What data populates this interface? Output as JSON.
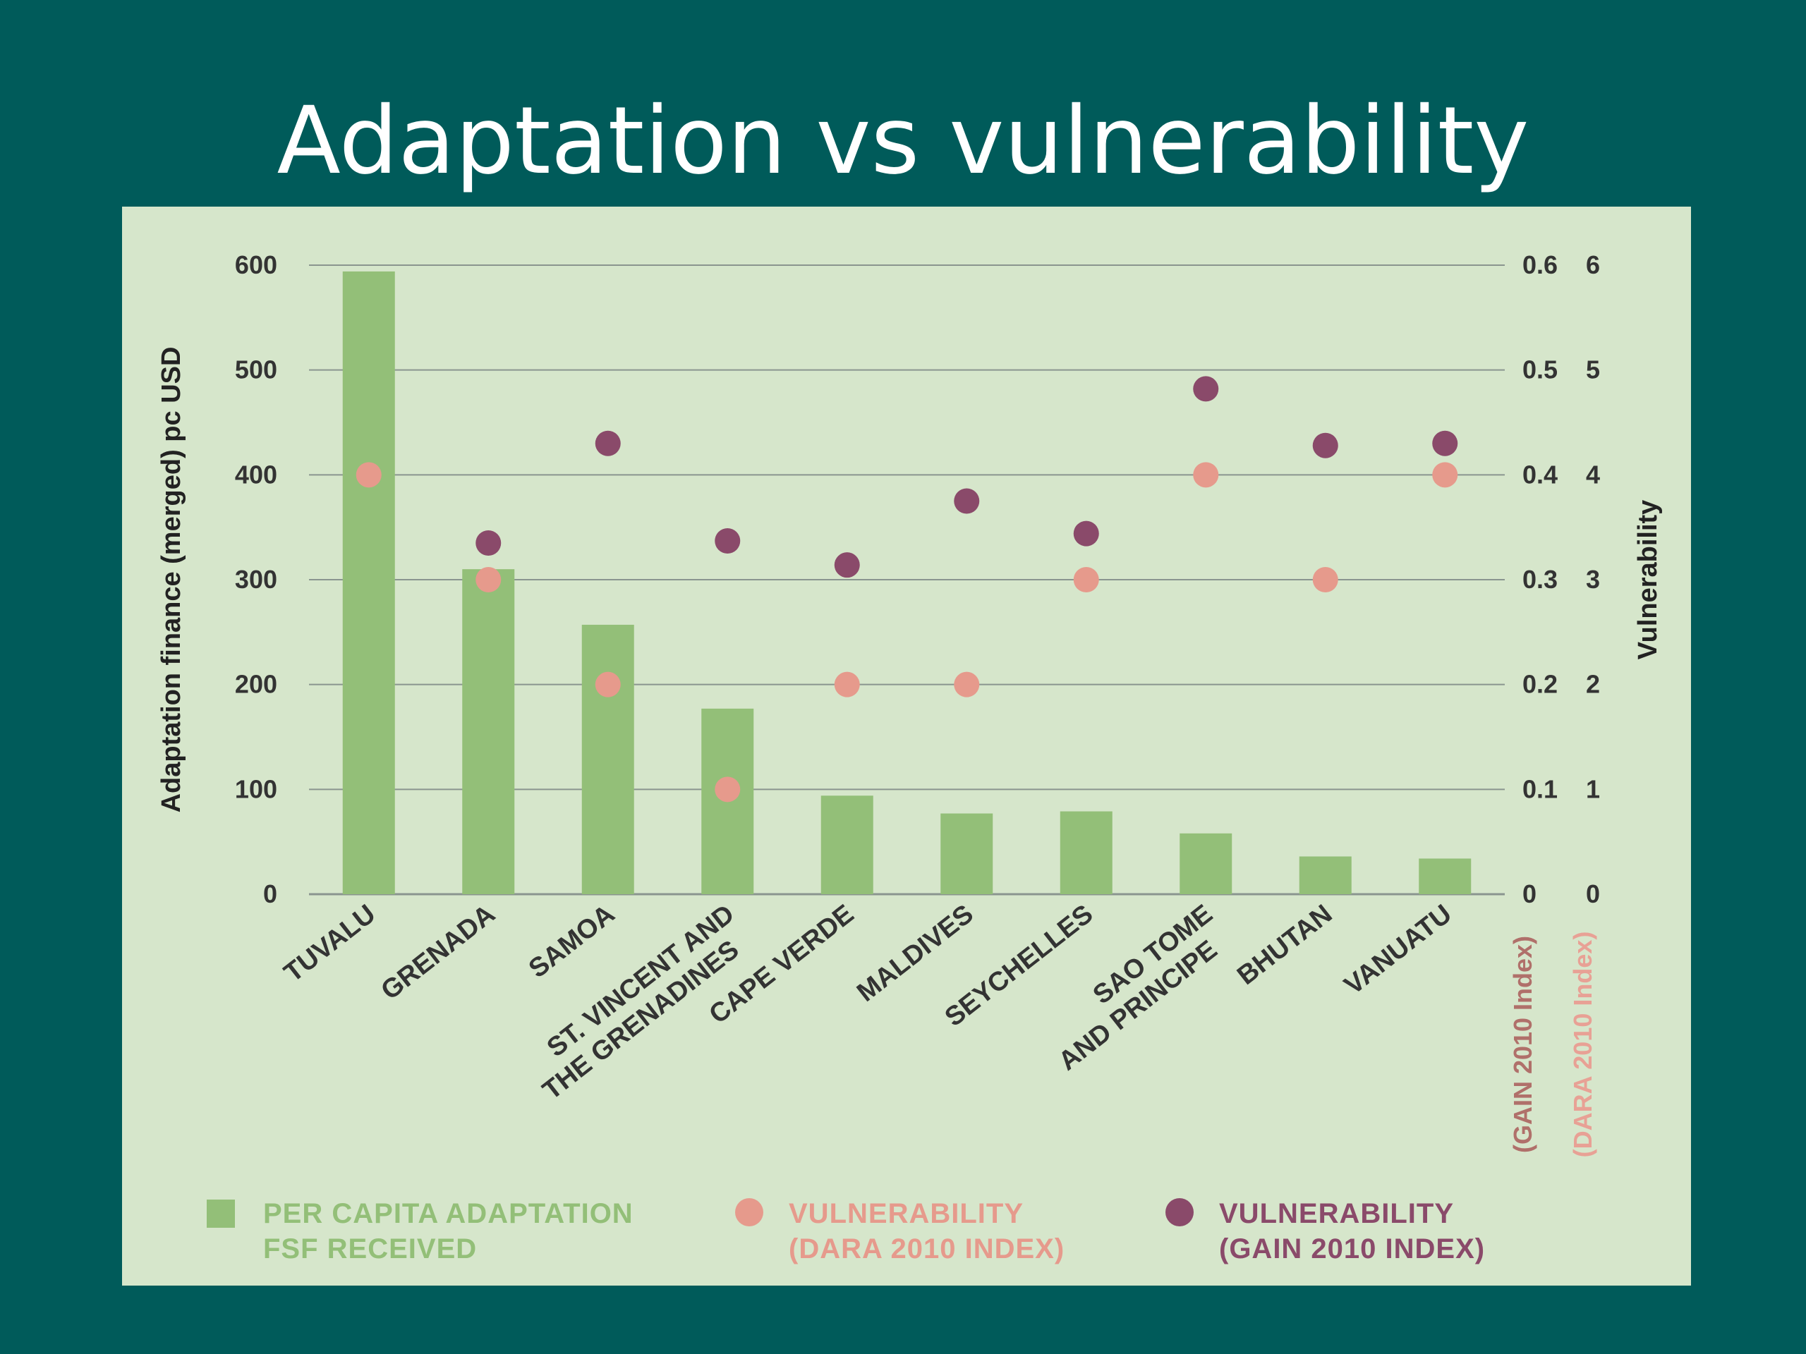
{
  "slide": {
    "title": "Adaptation vs vulnerability"
  },
  "colors": {
    "background": "#005b5a",
    "panel": "#d6e6cb",
    "bar": "#93bf78",
    "dara": "#e69a8c",
    "gain": "#8a4a6a",
    "grid": "#8a958f"
  },
  "chart_data": {
    "type": "bar",
    "categories": [
      [
        "TUVALU"
      ],
      [
        "GRENADA"
      ],
      [
        "SAMOA"
      ],
      [
        "ST. VINCENT AND",
        "THE GRENADINES"
      ],
      [
        "CAPE VERDE"
      ],
      [
        "MALDIVES"
      ],
      [
        "SEYCHELLES"
      ],
      [
        "SAO TOME",
        "AND PRINCIPE"
      ],
      [
        "BHUTAN"
      ],
      [
        "VANUATU"
      ]
    ],
    "series": [
      {
        "name": [
          "PER CAPITA ADAPTATION",
          "FSF RECEIVED"
        ],
        "type": "bar",
        "axis": "left",
        "values": [
          594,
          310,
          257,
          177,
          94,
          77,
          79,
          58,
          36,
          34
        ]
      },
      {
        "name": [
          "VULNERABILITY",
          "(DARA 2010 INDEX)"
        ],
        "type": "scatter",
        "axis": "right-dara",
        "values": [
          0.4,
          0.3,
          0.2,
          0.1,
          0.2,
          0.2,
          0.3,
          0.4,
          0.3,
          0.4
        ]
      },
      {
        "name": [
          "VULNERABILITY",
          "(GAIN 2010 INDEX)"
        ],
        "type": "scatter",
        "axis": "right-gain",
        "values": [
          null,
          3.35,
          4.3,
          3.37,
          3.14,
          3.75,
          3.44,
          4.82,
          4.28,
          4.3
        ]
      }
    ],
    "ylabel_left": "Adaptation finance  (merged) pc USD",
    "ylabel_right": "Vulnerability",
    "gain_axis_label": "(GAIN  2010  Index)",
    "dara_axis_label": "(DARA  2010  Index)",
    "ylim_left": [
      0,
      600
    ],
    "yticks_left": [
      "0",
      "100",
      "200",
      "300",
      "400",
      "500",
      "600"
    ],
    "yticks_right_dara": [
      "0",
      "0.1",
      "0.2",
      "0.3",
      "0.4",
      "0.5",
      "0.6"
    ],
    "yticks_right_gain": [
      "0",
      "1",
      "2",
      "3",
      "4",
      "5",
      "6"
    ],
    "grid": true,
    "legend_position": "bottom"
  }
}
